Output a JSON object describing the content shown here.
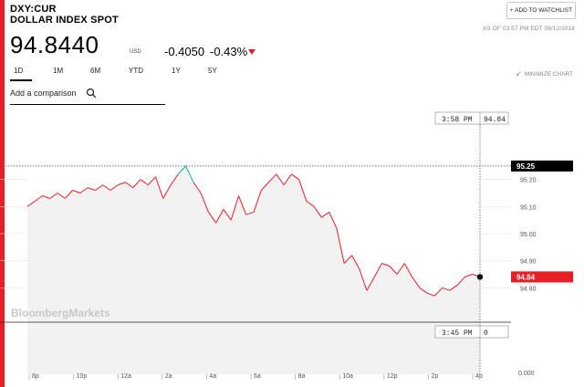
{
  "header": {
    "ticker": "DXY:CUR",
    "name": "DOLLAR INDEX SPOT",
    "watchlist_label": "+ ADD TO WATCHLIST",
    "as_of": "AS OF 03:57 PM EDT 09/12/2018"
  },
  "quote": {
    "price": "94.8440",
    "currency": "USD",
    "change": "-0.4050",
    "change_pct": "-0.43%",
    "direction": "down"
  },
  "tabs": [
    {
      "label": "1D",
      "active": true
    },
    {
      "label": "1M",
      "active": false
    },
    {
      "label": "6M",
      "active": false
    },
    {
      "label": "YTD",
      "active": false
    },
    {
      "label": "1Y",
      "active": false
    },
    {
      "label": "5Y",
      "active": false
    }
  ],
  "minimize_label": "MINIMIZE CHART",
  "compare": {
    "label": "Add a comparison"
  },
  "chart": {
    "crosshair_time": "3:58 PM",
    "crosshair_value": "94.84",
    "bottom_time": "3:45 PM",
    "bottom_value": "0",
    "watermark": "BloombergMarkets",
    "high_marker_label": "95.25",
    "last_marker_label": "94.84",
    "volume_zero_label": "0.000",
    "colors": {
      "line": "#e81e25",
      "high_segment": "#00b386",
      "marker_box": "#e81e25",
      "high_box": "#000000"
    }
  },
  "chart_data": {
    "type": "line",
    "title": "",
    "xlabel": "",
    "ylabel": "",
    "x_ticks": [
      "8p",
      "10p",
      "12a",
      "2a",
      "4a",
      "6a",
      "8a",
      "10a",
      "12p",
      "2p",
      "4p"
    ],
    "y_ticks": [
      "95.20",
      "95.10",
      "95.00",
      "94.90",
      "94.80"
    ],
    "ylim": [
      94.73,
      95.29
    ],
    "series": [
      {
        "points": [
          [
            "8p",
            95.1
          ],
          [
            "",
            95.12
          ],
          [
            "",
            95.14
          ],
          [
            "",
            95.13
          ],
          [
            "9p",
            95.15
          ],
          [
            "",
            95.13
          ],
          [
            "",
            95.16
          ],
          [
            "10p",
            95.15
          ],
          [
            "",
            95.17
          ],
          [
            "",
            95.16
          ],
          [
            "11p",
            95.18
          ],
          [
            "",
            95.16
          ],
          [
            "12a",
            95.18
          ],
          [
            "",
            95.19
          ],
          [
            "",
            95.17
          ],
          [
            "1a",
            95.2
          ],
          [
            "",
            95.18
          ],
          [
            "",
            95.21
          ],
          [
            "2a",
            95.13
          ],
          [
            "",
            95.18
          ],
          [
            "",
            95.22
          ],
          [
            "",
            95.25
          ],
          [
            "3a",
            95.19
          ],
          [
            "",
            95.15
          ],
          [
            "",
            95.08
          ],
          [
            "4a",
            95.04
          ],
          [
            "",
            95.09
          ],
          [
            "",
            95.05
          ],
          [
            "5a",
            95.14
          ],
          [
            "",
            95.07
          ],
          [
            "6a",
            95.08
          ],
          [
            "",
            95.16
          ],
          [
            "",
            95.19
          ],
          [
            "7a",
            95.22
          ],
          [
            "",
            95.18
          ],
          [
            "",
            95.22
          ],
          [
            "8a",
            95.2
          ],
          [
            "",
            95.12
          ],
          [
            "",
            95.1
          ],
          [
            "9a",
            95.06
          ],
          [
            "",
            95.08
          ],
          [
            "",
            95.02
          ],
          [
            "10a",
            94.89
          ],
          [
            "",
            94.92
          ],
          [
            "",
            94.87
          ],
          [
            "11a",
            94.79
          ],
          [
            "",
            94.84
          ],
          [
            "",
            94.89
          ],
          [
            "12p",
            94.88
          ],
          [
            "",
            94.85
          ],
          [
            "",
            94.89
          ],
          [
            "1p",
            94.84
          ],
          [
            "",
            94.8
          ],
          [
            "",
            94.78
          ],
          [
            "2p",
            94.77
          ],
          [
            "",
            94.8
          ],
          [
            "",
            94.79
          ],
          [
            "3p",
            94.81
          ],
          [
            "",
            94.84
          ],
          [
            "",
            94.85
          ],
          [
            "4p",
            94.84
          ]
        ]
      }
    ],
    "grid": true
  }
}
